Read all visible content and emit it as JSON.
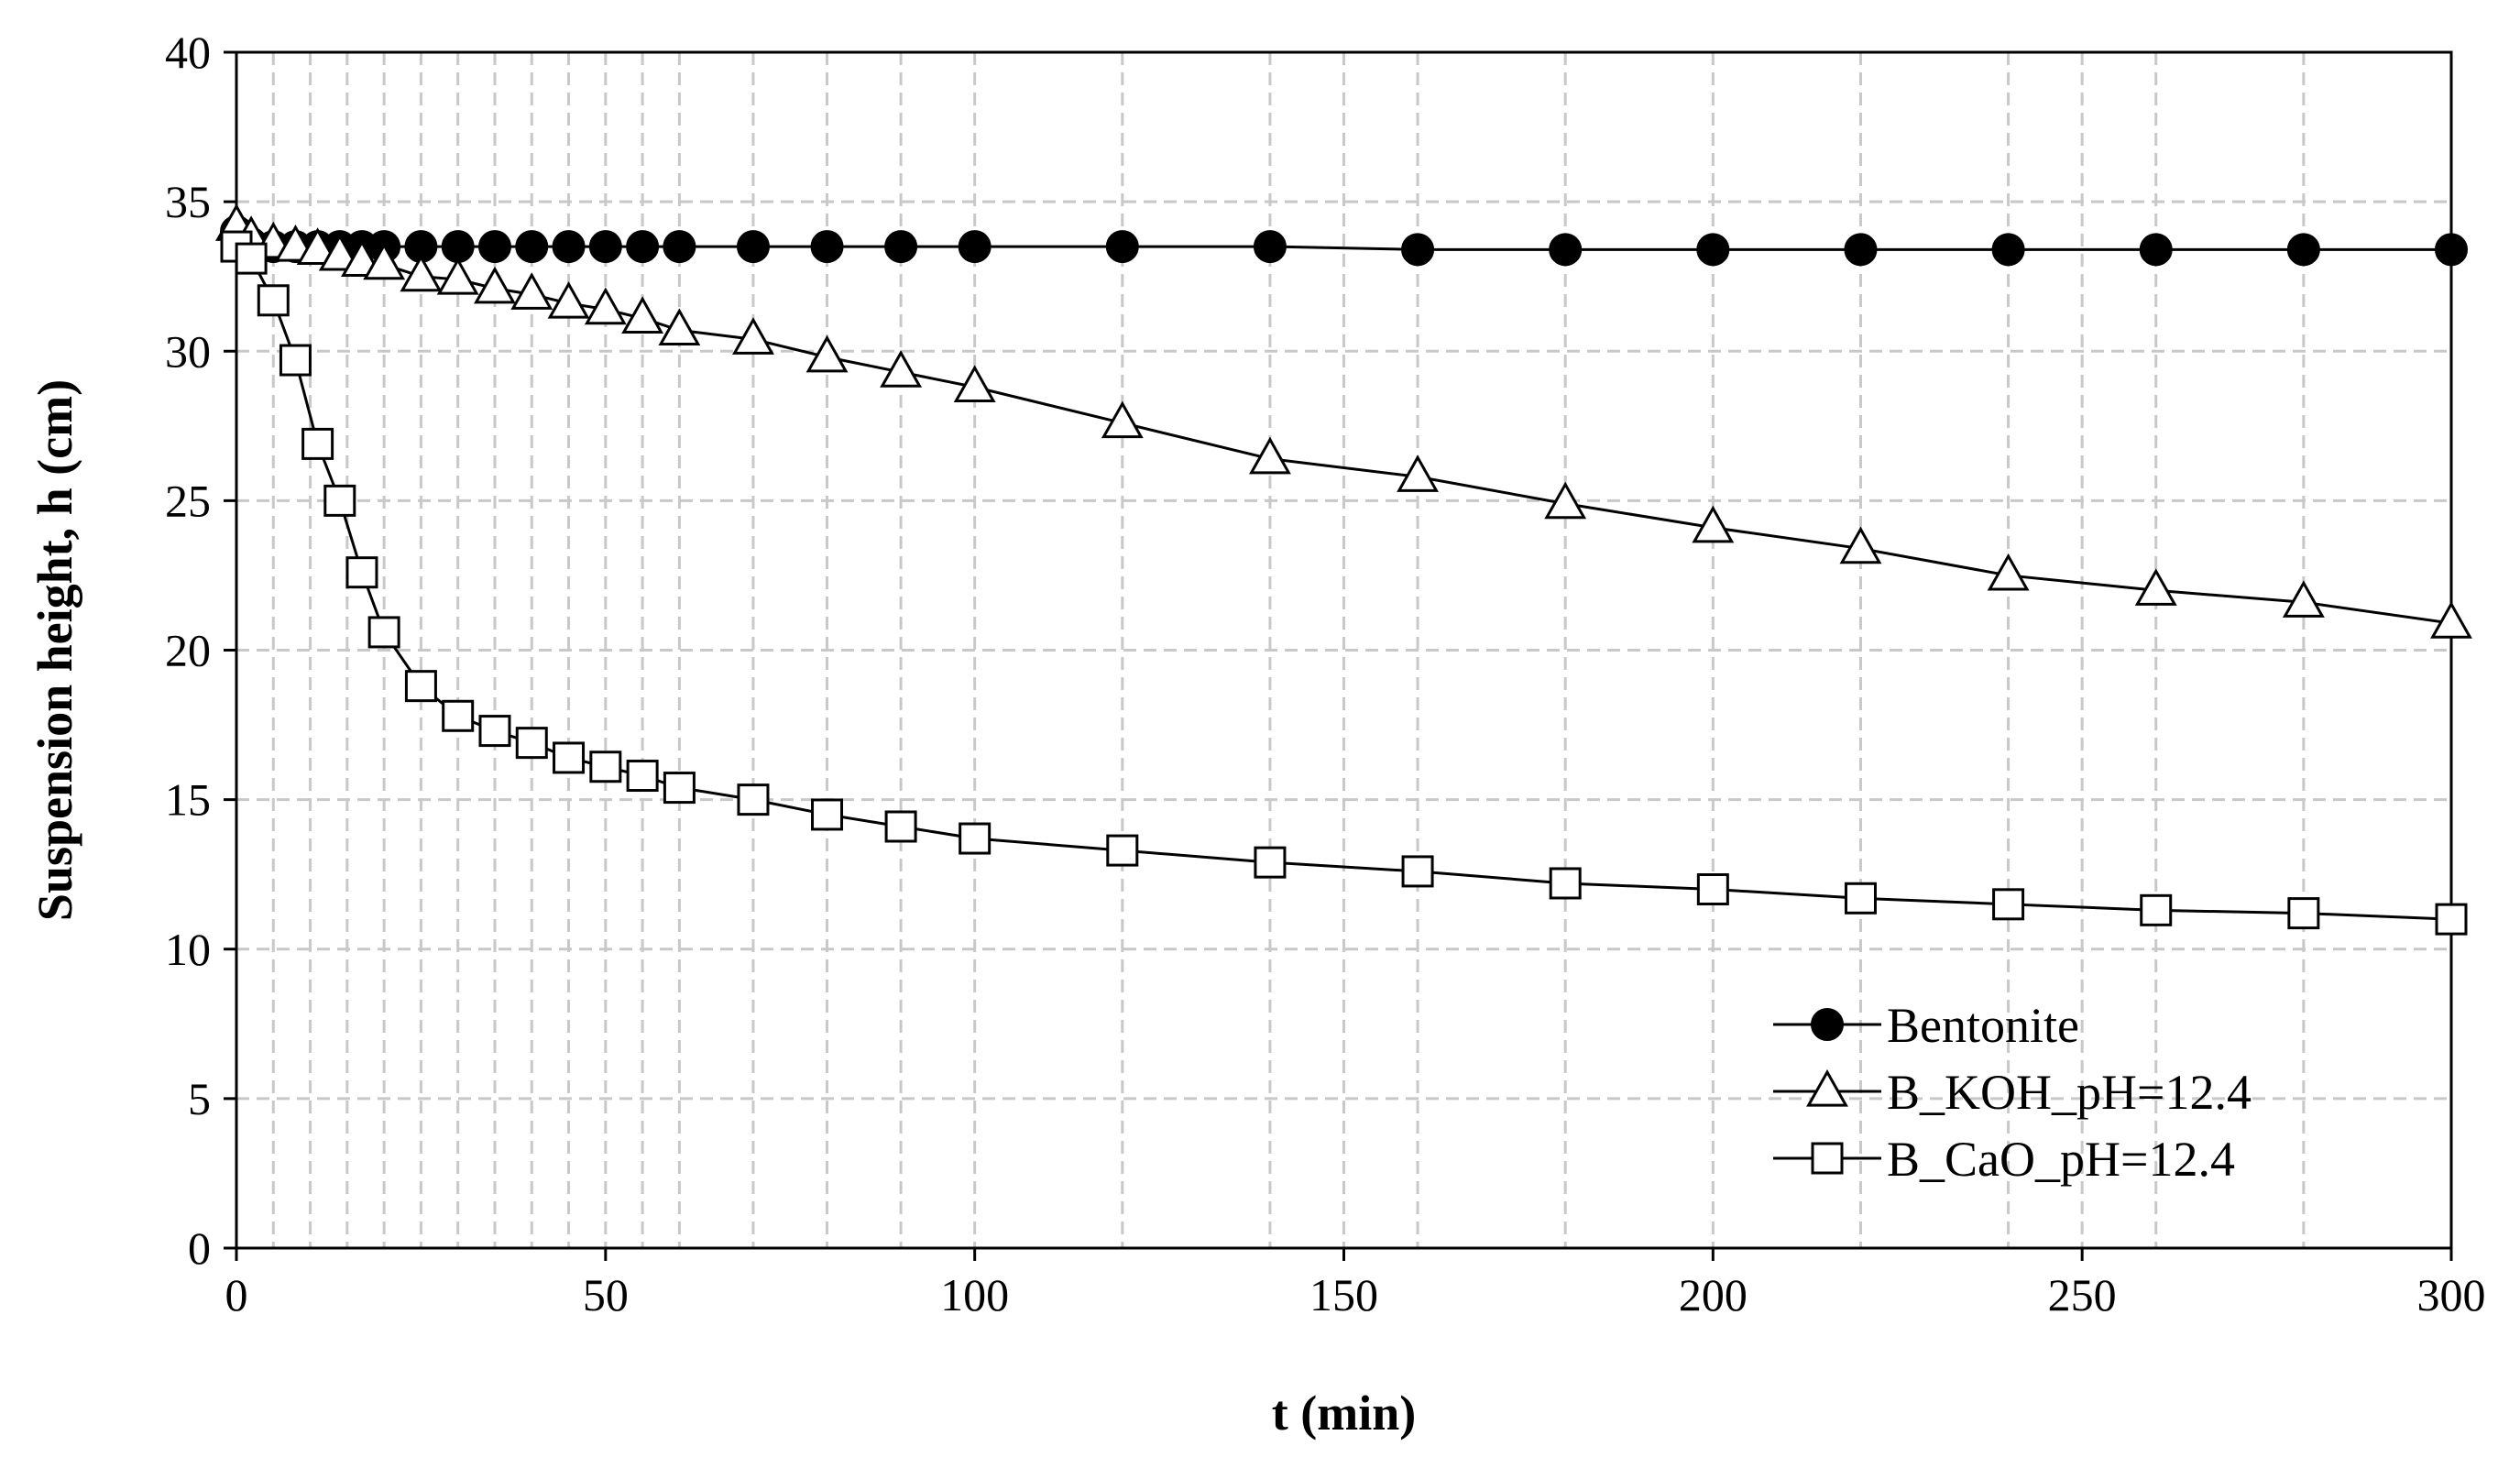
{
  "chart_data": {
    "type": "line",
    "title": "",
    "xlabel": "t (min)",
    "ylabel": "Suspension height, h  (cm)",
    "xlim": [
      0,
      300
    ],
    "ylim": [
      0,
      40
    ],
    "xticks": [
      0,
      50,
      100,
      150,
      200,
      250,
      300
    ],
    "yticks": [
      0,
      5,
      10,
      15,
      20,
      25,
      30,
      35,
      40
    ],
    "xtick_labels": [
      "0",
      "50",
      "100",
      "150",
      "200",
      "250",
      "300"
    ],
    "ytick_labels": [
      "0",
      "5",
      "10",
      "15",
      "20",
      "25",
      "30",
      "35",
      "40"
    ],
    "x_minor_grid": [
      5,
      10,
      15,
      20,
      25,
      30,
      35,
      40,
      45,
      55,
      60,
      70,
      80,
      90,
      120,
      140,
      160,
      180,
      220,
      240,
      260,
      280
    ],
    "grid": true,
    "legend_position": "bottom-right",
    "series": [
      {
        "name": "Bentonite",
        "marker": "circle-filled",
        "x": [
          0,
          2,
          5,
          8,
          11,
          14,
          17,
          20,
          25,
          30,
          35,
          40,
          45,
          50,
          55,
          60,
          70,
          80,
          90,
          100,
          120,
          140,
          160,
          180,
          200,
          220,
          240,
          260,
          280,
          300
        ],
        "values": [
          34.0,
          33.6,
          33.5,
          33.5,
          33.5,
          33.5,
          33.5,
          33.5,
          33.5,
          33.5,
          33.5,
          33.5,
          33.5,
          33.5,
          33.5,
          33.5,
          33.5,
          33.5,
          33.5,
          33.5,
          33.5,
          33.5,
          33.4,
          33.4,
          33.4,
          33.4,
          33.4,
          33.4,
          33.4,
          33.4
        ]
      },
      {
        "name": "B_KOH_pH=12.4",
        "marker": "triangle-open",
        "x": [
          0,
          2,
          5,
          8,
          11,
          14,
          17,
          20,
          25,
          30,
          35,
          40,
          45,
          50,
          55,
          60,
          70,
          80,
          90,
          100,
          120,
          140,
          160,
          180,
          200,
          220,
          240,
          260,
          280,
          300
        ],
        "values": [
          34.2,
          33.8,
          33.6,
          33.5,
          33.4,
          33.2,
          33.0,
          32.9,
          32.5,
          32.4,
          32.1,
          31.9,
          31.6,
          31.4,
          31.1,
          30.7,
          30.4,
          29.8,
          29.3,
          28.8,
          27.6,
          26.4,
          25.8,
          24.9,
          24.1,
          23.4,
          22.5,
          22.0,
          21.6,
          20.9
        ]
      },
      {
        "name": "B_CaO_pH=12.4",
        "marker": "square-open",
        "x": [
          0,
          2,
          5,
          8,
          11,
          14,
          17,
          20,
          25,
          30,
          35,
          40,
          45,
          50,
          55,
          60,
          70,
          80,
          90,
          100,
          120,
          140,
          160,
          180,
          200,
          220,
          240,
          260,
          280,
          300
        ],
        "values": [
          33.5,
          33.1,
          31.7,
          29.7,
          26.9,
          25.0,
          22.6,
          20.6,
          18.8,
          17.8,
          17.3,
          16.9,
          16.4,
          16.1,
          15.8,
          15.4,
          15.0,
          14.5,
          14.1,
          13.7,
          13.3,
          12.9,
          12.6,
          12.2,
          12.0,
          11.7,
          11.5,
          11.3,
          11.2,
          11.0
        ]
      }
    ]
  }
}
